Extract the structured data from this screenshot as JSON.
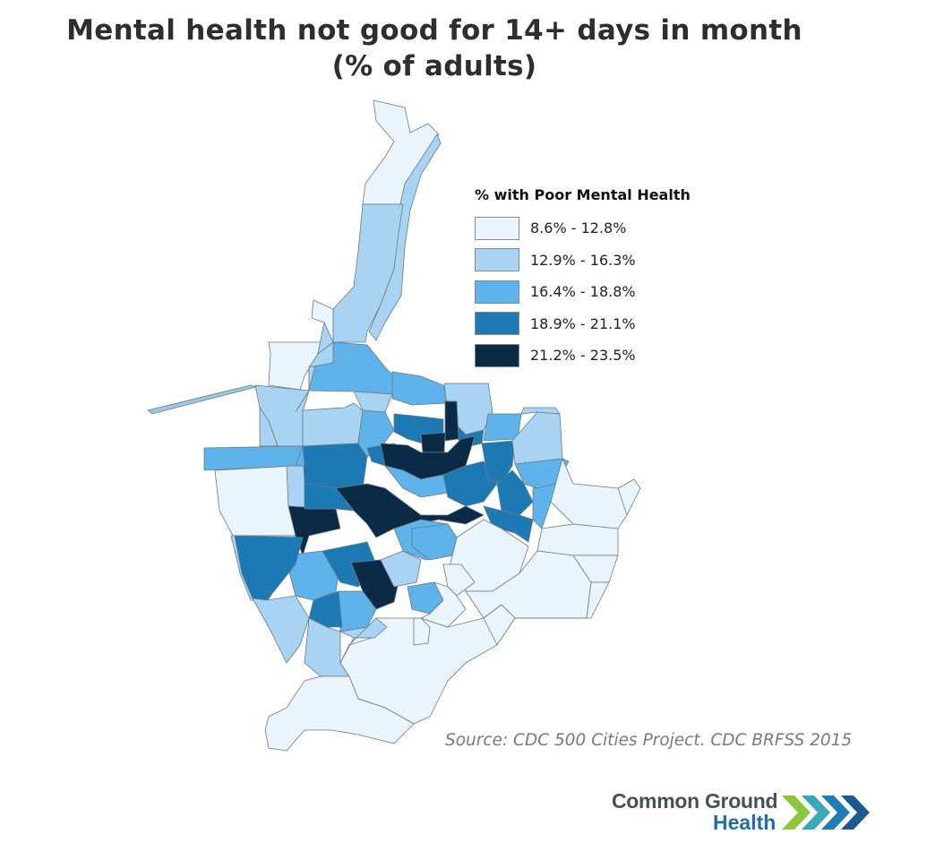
{
  "title": {
    "line1": "Mental health not good for 14+ days in month",
    "line2": "(% of adults)"
  },
  "legend": {
    "title": "% with Poor Mental Health",
    "classes": [
      {
        "label": "8.6% - 12.8%",
        "color": "#eaf4fc"
      },
      {
        "label": "12.9% - 16.3%",
        "color": "#a8d3f2"
      },
      {
        "label": "16.4% - 18.8%",
        "color": "#5eb3ea"
      },
      {
        "label": "18.9% - 21.1%",
        "color": "#1c79b4"
      },
      {
        "label": "21.2% - 23.5%",
        "color": "#0b2a45"
      }
    ]
  },
  "source": "Source: CDC 500 Cities Project. CDC BRFSS 2015",
  "logo": {
    "line1": "Common Ground",
    "line2": "Health",
    "chevron_colors": [
      "#8cc63f",
      "#3aa8b8",
      "#1f7fb5",
      "#1a5a8f"
    ]
  },
  "map": {
    "stroke_color": "#6a7a86",
    "shape_classes": [
      0,
      1,
      1,
      0,
      2,
      1,
      1,
      2,
      0,
      1,
      1,
      2,
      3,
      2,
      3,
      4,
      1,
      3,
      2,
      4,
      3,
      4,
      4,
      4,
      2,
      3,
      3,
      3,
      3,
      2,
      1,
      2,
      1,
      2,
      3,
      3,
      4,
      2,
      3,
      2,
      1,
      2,
      1,
      1,
      1,
      0,
      0,
      0,
      1,
      2,
      0,
      0,
      0,
      0,
      0,
      0,
      0,
      0,
      1,
      2,
      3,
      1,
      0,
      0,
      1,
      1
    ]
  }
}
